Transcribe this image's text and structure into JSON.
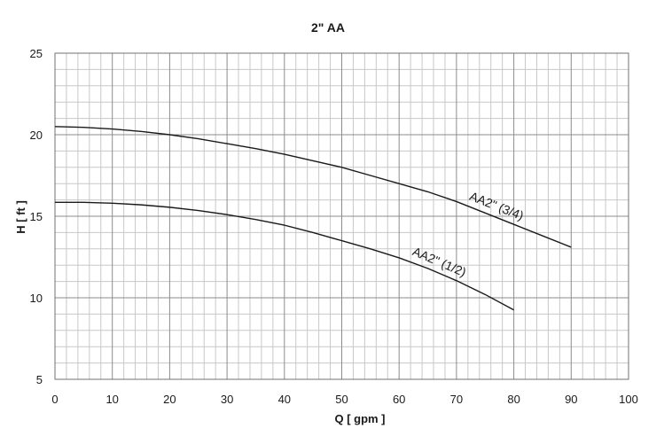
{
  "chart_data": {
    "type": "line",
    "title": "2\" AA",
    "xlabel": "Q [ gpm ]",
    "ylabel": "H [ ft ]",
    "xlim": [
      0,
      100
    ],
    "ylim": [
      5,
      25
    ],
    "x_ticks": [
      0,
      10,
      20,
      30,
      40,
      50,
      60,
      70,
      80,
      90,
      100
    ],
    "y_ticks": [
      5,
      10,
      15,
      20,
      25
    ],
    "grid": true,
    "series": [
      {
        "name": "AA2\" (3/4)",
        "x": [
          0,
          5,
          10,
          15,
          20,
          25,
          30,
          35,
          40,
          45,
          50,
          55,
          60,
          65,
          70,
          75,
          80,
          85,
          90
        ],
        "y": [
          20.5,
          20.45,
          20.35,
          20.2,
          20.0,
          19.75,
          19.45,
          19.15,
          18.8,
          18.4,
          18.0,
          17.5,
          17.0,
          16.5,
          15.9,
          15.2,
          14.5,
          13.8,
          13.1
        ]
      },
      {
        "name": "AA2\" (1/2)",
        "x": [
          0,
          5,
          10,
          15,
          20,
          25,
          30,
          35,
          40,
          45,
          50,
          55,
          60,
          65,
          70,
          75,
          80
        ],
        "y": [
          15.85,
          15.85,
          15.8,
          15.7,
          15.55,
          15.35,
          15.1,
          14.8,
          14.45,
          14.0,
          13.5,
          13.0,
          12.45,
          11.8,
          11.05,
          10.2,
          9.25
        ]
      }
    ]
  }
}
